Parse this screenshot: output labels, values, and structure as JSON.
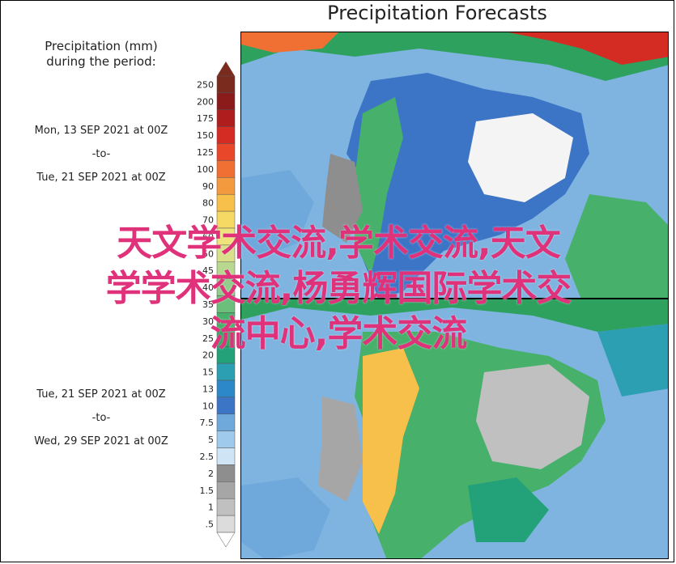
{
  "title": "Precipitation Forecasts",
  "legend": {
    "title_line1": "Precipitation (mm)",
    "title_line2": "during the period:",
    "ticks": [
      "250",
      "200",
      "175",
      "150",
      "125",
      "100",
      "90",
      "80",
      "70",
      "60",
      "50",
      "45",
      "40",
      "35",
      "30",
      "25",
      "20",
      "15",
      "13",
      "10",
      "7.5",
      "5",
      "2.5",
      "2",
      "1.5",
      "1",
      ".5"
    ],
    "colors": [
      "#7a2b1e",
      "#8b1a1a",
      "#b01d1d",
      "#d42b22",
      "#e8472a",
      "#f07034",
      "#f39a3f",
      "#f7c04a",
      "#f6d864",
      "#eee37a",
      "#d8e08a",
      "#b8d890",
      "#94cc8c",
      "#6cbf7a",
      "#47b06a",
      "#2ea15f",
      "#23a27a",
      "#2d9fb3",
      "#2c88c8",
      "#3d75c6",
      "#6fa9dc",
      "#9fcaeb",
      "#cfe5f5",
      "#8e8e8e",
      "#a6a6a6",
      "#c0c0c0",
      "#dcdcdc"
    ]
  },
  "periods": [
    {
      "start": "Mon, 13 SEP 2021 at 00Z",
      "to": "-to-",
      "end": "Tue, 21 SEP 2021 at 00Z"
    },
    {
      "start": "Tue, 21 SEP 2021 at 00Z",
      "to": "-to-",
      "end": "Wed, 29 SEP 2021 at 00Z"
    }
  ],
  "watermark": {
    "line1": "天文学术交流,学术交流,天文",
    "line2": "学学术交流,杨勇辉国际学术交",
    "line3": "流中心,学术交流"
  }
}
